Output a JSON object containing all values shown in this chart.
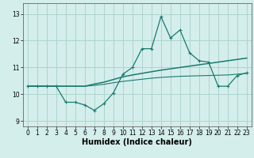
{
  "title": "",
  "xlabel": "Humidex (Indice chaleur)",
  "ylabel": "",
  "x_values": [
    0,
    1,
    2,
    3,
    4,
    5,
    6,
    7,
    8,
    9,
    10,
    11,
    12,
    13,
    14,
    15,
    16,
    17,
    18,
    19,
    20,
    21,
    22,
    23
  ],
  "line1_y": [
    10.3,
    10.3,
    10.3,
    10.3,
    9.7,
    9.7,
    9.6,
    9.4,
    9.65,
    10.05,
    10.75,
    11.0,
    11.7,
    11.7,
    12.9,
    12.1,
    12.4,
    11.55,
    11.25,
    11.2,
    10.3,
    10.3,
    10.7,
    10.8
  ],
  "line2_y": [
    10.3,
    10.3,
    10.3,
    10.3,
    10.3,
    10.3,
    10.3,
    10.38,
    10.45,
    10.55,
    10.65,
    10.72,
    10.78,
    10.84,
    10.9,
    10.95,
    11.0,
    11.05,
    11.1,
    11.15,
    11.2,
    11.25,
    11.3,
    11.35
  ],
  "line3_y": [
    10.3,
    10.3,
    10.3,
    10.3,
    10.3,
    10.3,
    10.3,
    10.33,
    10.37,
    10.43,
    10.48,
    10.52,
    10.56,
    10.6,
    10.63,
    10.65,
    10.67,
    10.68,
    10.69,
    10.7,
    10.71,
    10.72,
    10.75,
    10.78
  ],
  "line_color": "#1a7a6e",
  "bg_color": "#d4eeec",
  "grid_color": "#aed4d0",
  "ylim": [
    8.8,
    13.4
  ],
  "xlim": [
    -0.5,
    23.5
  ],
  "yticks": [
    9,
    10,
    11,
    12,
    13
  ],
  "xticks": [
    0,
    1,
    2,
    3,
    4,
    5,
    6,
    7,
    8,
    9,
    10,
    11,
    12,
    13,
    14,
    15,
    16,
    17,
    18,
    19,
    20,
    21,
    22,
    23
  ],
  "tick_fontsize": 5.5,
  "xlabel_fontsize": 7.0
}
